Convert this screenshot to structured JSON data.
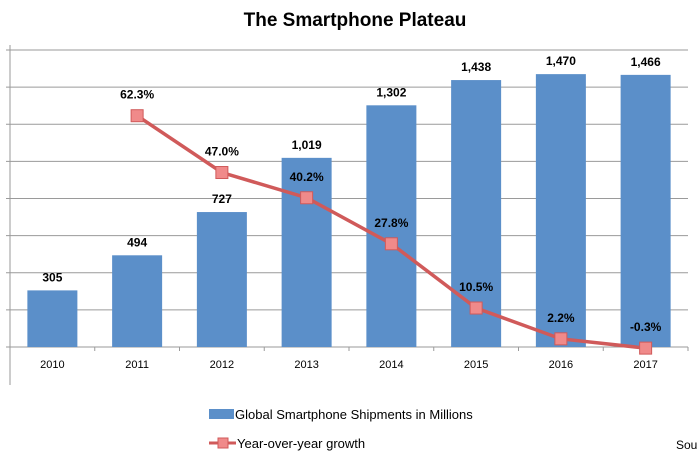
{
  "chart_data": {
    "type": "bar",
    "title": "The Smartphone Plateau",
    "categories": [
      "2010",
      "2011",
      "2012",
      "2013",
      "2014",
      "2015",
      "2016",
      "2017"
    ],
    "series": [
      {
        "name": "Global Smartphone Shipments in Millions",
        "type": "bar",
        "axis": "primary",
        "values": [
          305,
          494,
          727,
          1019,
          1302,
          1438,
          1470,
          1466
        ],
        "labels": [
          "305",
          "494",
          "727",
          "1,019",
          "1,302",
          "1,438",
          "1,470",
          "1,466"
        ]
      },
      {
        "name": "Year-over-year growth",
        "type": "line",
        "axis": "secondary",
        "unit": "%",
        "values": [
          null,
          62.3,
          47.0,
          40.2,
          27.8,
          10.5,
          2.2,
          -0.3
        ],
        "labels": [
          "",
          "62.3%",
          "47.0%",
          "40.2%",
          "27.8%",
          "10.5%",
          "2.2%",
          "-0.3%"
        ]
      }
    ],
    "ylim": [
      0,
      1600
    ],
    "y2lim": [
      0,
      80
    ],
    "grid": true,
    "legend_placement": "bottom",
    "colors": {
      "bar": "#5b8fc9",
      "line": "#d05a5a",
      "marker": "#f08a8a"
    }
  },
  "source_fragment": "Sou"
}
